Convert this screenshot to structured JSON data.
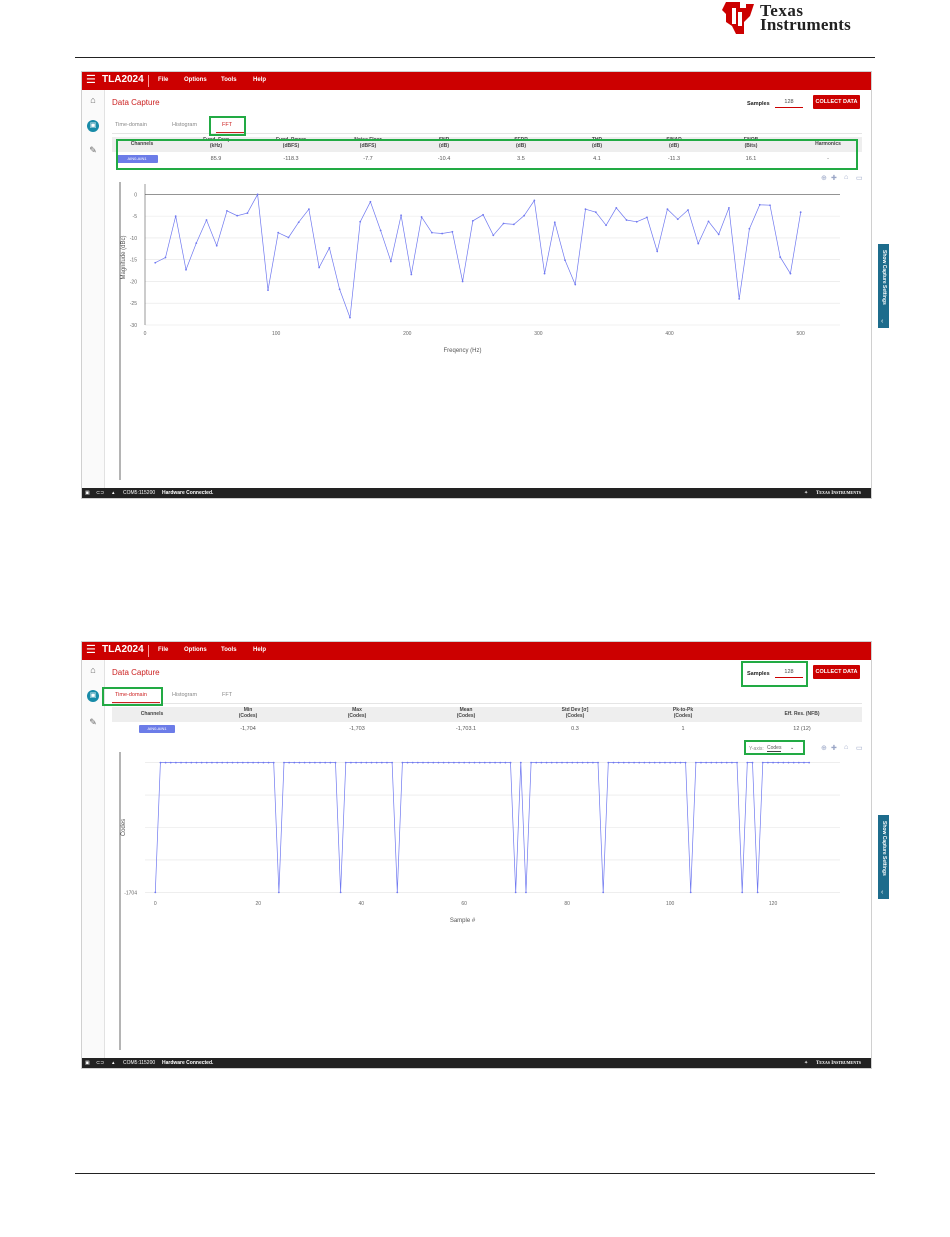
{
  "header": {
    "logo_line1": "Texas",
    "logo_line2": "Instruments"
  },
  "screenshots": [
    {
      "app": {
        "title": "TLA2024",
        "menu": [
          "File",
          "Options",
          "Tools",
          "Help"
        ]
      },
      "page_title": "Data Capture",
      "samples_label": "Samples",
      "samples_value": "128",
      "collect_button": "COLLECT DATA",
      "tabs": [
        "Time-domain",
        "Histogram",
        "FFT"
      ],
      "active_tab": "FFT",
      "stats": {
        "headers": [
          "Channels",
          "Fund. Freq\n(kHz)",
          "Fund. Power\n(dBFS)",
          "Noise Floor\n(dBFS)",
          "SNR\n(dB)",
          "SFDR\n(dB)",
          "THD\n(dB)",
          "SINAD\n(dB)",
          "ENOB\n(Bits)",
          "Harmonics"
        ],
        "channel_chip": "AIN0-AIN1",
        "values": [
          "85.9",
          "-118.3",
          "-7.7",
          "-10.4",
          "3.5",
          "4.1",
          "-11.3",
          "16.1",
          "-"
        ]
      },
      "side_tab_label": "Show Capture Settings",
      "status": {
        "port": "COM5:115200",
        "connection": "Hardware Connected.",
        "brand": "Texas Instruments"
      },
      "chart_data": {
        "type": "line",
        "xlabel": "Freqency (Hz)",
        "ylabel": "Magnitude (dBc)",
        "xlim": [
          0,
          530
        ],
        "ylim": [
          -30,
          1
        ],
        "xticks": [
          0,
          100,
          200,
          300,
          400,
          500
        ],
        "yticks": [
          0,
          -5,
          -10,
          -15,
          -20,
          -25,
          -30
        ],
        "grid": true,
        "color": "#6f78f0",
        "x": [
          7.8,
          15.6,
          23.4,
          31.3,
          39.1,
          46.9,
          54.7,
          62.5,
          70.3,
          78.1,
          85.9,
          93.8,
          101.6,
          109.4,
          117.2,
          125.0,
          132.8,
          140.6,
          148.4,
          156.3,
          164.1,
          171.9,
          179.7,
          187.5,
          195.3,
          203.1,
          210.9,
          218.8,
          226.6,
          234.4,
          242.2,
          250.0,
          257.8,
          265.6,
          273.4,
          281.3,
          289.1,
          296.9,
          304.7,
          312.5,
          320.3,
          328.1,
          335.9,
          343.8,
          351.6,
          359.4,
          367.2,
          375.0,
          382.8,
          390.6,
          398.4,
          406.3,
          414.1,
          421.9,
          429.7,
          437.5,
          445.3,
          453.1,
          460.9,
          468.8,
          476.6,
          484.4,
          492.2,
          500.0
        ],
        "y": [
          -15.7,
          -14.5,
          -5.0,
          -17.3,
          -11.2,
          -5.9,
          -11.8,
          -3.8,
          -4.9,
          -4.3,
          0,
          -22.0,
          -8.8,
          -9.9,
          -6.4,
          -3.4,
          -16.8,
          -12.3,
          -21.8,
          -28.3,
          -6.3,
          -1.7,
          -8.3,
          -15.4,
          -4.8,
          -18.4,
          -5.2,
          -8.8,
          -9.0,
          -8.6,
          -20.0,
          -6.1,
          -4.7,
          -9.4,
          -6.7,
          -6.9,
          -4.9,
          -1.4,
          -18.2,
          -6.4,
          -15.1,
          -20.7,
          -3.4,
          -4.1,
          -7.1,
          -3.1,
          -5.9,
          -6.3,
          -5.3,
          -13.1,
          -3.4,
          -5.7,
          -3.6,
          -11.3,
          -6.2,
          -9.2,
          -3.1,
          -24.0,
          -7.9,
          -2.4,
          -2.5,
          -14.4,
          -18.2,
          -4.1
        ]
      }
    },
    {
      "app": {
        "title": "TLA2024",
        "menu": [
          "File",
          "Options",
          "Tools",
          "Help"
        ]
      },
      "page_title": "Data Capture",
      "samples_label": "Samples",
      "samples_value": "128",
      "collect_button": "COLLECT DATA",
      "tabs": [
        "Time-domain",
        "Histogram",
        "FFT"
      ],
      "active_tab": "Time-domain",
      "stats": {
        "headers": [
          "Channels",
          "Min\n(Codes)",
          "Max\n(Codes)",
          "Mean\n(Codes)",
          "Std Dev [σ]\n(Codes)",
          "Pk-to-Pk\n(Codes)",
          "Eff. Res. (NFB)"
        ],
        "channel_chip": "AIN0-AIN1",
        "values": [
          "-1,704",
          "-1,703",
          "-1,703.1",
          "0.3",
          "1",
          "12 (12)"
        ]
      },
      "yaxis_label": "Y-axis:",
      "yaxis_value": "Codes",
      "side_tab_label": "Show Capture Settings",
      "status": {
        "port": "COM5:115200",
        "connection": "Hardware Connected.",
        "brand": "Texas Instruments"
      },
      "chart_data": {
        "type": "line",
        "xlabel": "Sample #",
        "ylabel": "Codes",
        "xlim": [
          -2,
          133
        ],
        "ylim": [
          -1704.02,
          -1702.98
        ],
        "xticks": [
          0,
          20,
          40,
          60,
          80,
          100,
          120
        ],
        "yticks": [
          -1704
        ],
        "grid": true,
        "color": "#6f78f0",
        "low_samples": [
          0,
          24,
          36,
          47,
          70,
          72,
          87,
          104,
          114,
          117
        ],
        "n_samples": 128,
        "high_value": -1703,
        "low_value": -1704
      }
    }
  ]
}
